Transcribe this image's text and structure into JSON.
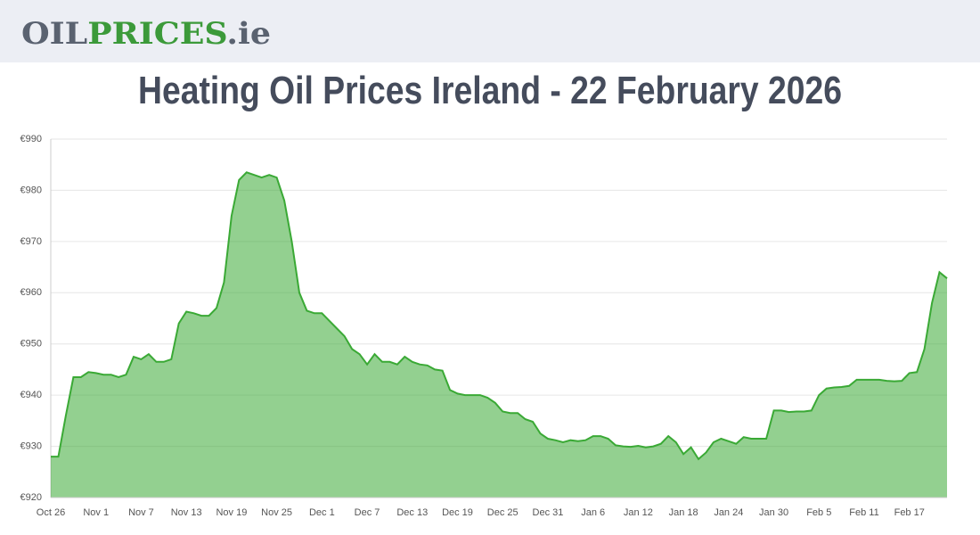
{
  "header": {
    "logo": [
      "OIL",
      "PRICES",
      ".ie"
    ]
  },
  "chart_data": {
    "type": "area",
    "title": "Heating Oil Prices Ireland - 22 February 2026",
    "categories": [
      "Oct 26",
      null,
      null,
      null,
      null,
      null,
      "Nov 1",
      null,
      null,
      null,
      null,
      null,
      "Nov 7",
      null,
      null,
      null,
      null,
      null,
      "Nov 13",
      null,
      null,
      null,
      null,
      null,
      "Nov 19",
      null,
      null,
      null,
      null,
      null,
      "Nov 25",
      null,
      null,
      null,
      null,
      null,
      "Dec 1",
      null,
      null,
      null,
      null,
      null,
      "Dec 7",
      null,
      null,
      null,
      null,
      null,
      "Dec 13",
      null,
      null,
      null,
      null,
      null,
      "Dec 19",
      null,
      null,
      null,
      null,
      null,
      "Dec 25",
      null,
      null,
      null,
      null,
      null,
      "Dec 31",
      null,
      null,
      null,
      null,
      null,
      "Jan 6",
      null,
      null,
      null,
      null,
      null,
      "Jan 12",
      null,
      null,
      null,
      null,
      null,
      "Jan 18",
      null,
      null,
      null,
      null,
      null,
      "Jan 24",
      null,
      null,
      null,
      null,
      null,
      "Jan 30",
      null,
      null,
      null,
      null,
      null,
      "Feb 5",
      null,
      null,
      null,
      null,
      null,
      "Feb 11",
      null,
      null,
      null,
      null,
      null,
      "Feb 17",
      null,
      null,
      null,
      null,
      null
    ],
    "values": [
      928,
      928,
      936,
      943.5,
      943.5,
      944.5,
      944.3,
      944,
      944,
      943.5,
      944,
      947.5,
      947,
      948,
      946.5,
      946.5,
      947,
      954,
      956.3,
      956,
      955.5,
      955.5,
      957,
      962,
      975,
      982,
      983.5,
      983,
      982.5,
      983,
      982.5,
      978,
      970,
      960,
      956.5,
      956,
      956,
      954.5,
      953,
      951.5,
      949,
      948,
      946,
      948,
      946.5,
      946.5,
      946,
      947.5,
      946.5,
      946,
      945.8,
      945,
      944.8,
      941,
      940.3,
      940,
      940,
      940,
      939.5,
      938.5,
      936.8,
      936.5,
      936.5,
      935.3,
      934.8,
      932.5,
      931.5,
      931.2,
      930.8,
      931.2,
      931,
      931.2,
      932,
      932,
      931.5,
      930.2,
      930,
      929.9,
      930.1,
      929.8,
      930,
      930.5,
      932,
      930.8,
      928.5,
      929.8,
      927.5,
      928.8,
      930.8,
      931.5,
      931,
      930.5,
      931.8,
      931.5,
      931.5,
      931.5,
      937,
      937,
      936.7,
      936.8,
      936.8,
      937,
      940,
      941.3,
      941.5,
      941.6,
      941.8,
      943,
      943,
      943,
      943,
      942.8,
      942.7,
      942.8,
      944.3,
      944.5,
      949,
      958,
      964,
      962.8
    ],
    "color": "#3aa935",
    "ylim": [
      920,
      990
    ],
    "yticks": [
      {
        "value": 920,
        "label": "€920"
      },
      {
        "value": 930,
        "label": "€930"
      },
      {
        "value": 940,
        "label": "€940"
      },
      {
        "value": 950,
        "label": "€950"
      },
      {
        "value": 960,
        "label": "€960"
      },
      {
        "value": 970,
        "label": "€970"
      },
      {
        "value": 980,
        "label": "€980"
      },
      {
        "value": 990,
        "label": "€990"
      }
    ],
    "grid": true
  }
}
